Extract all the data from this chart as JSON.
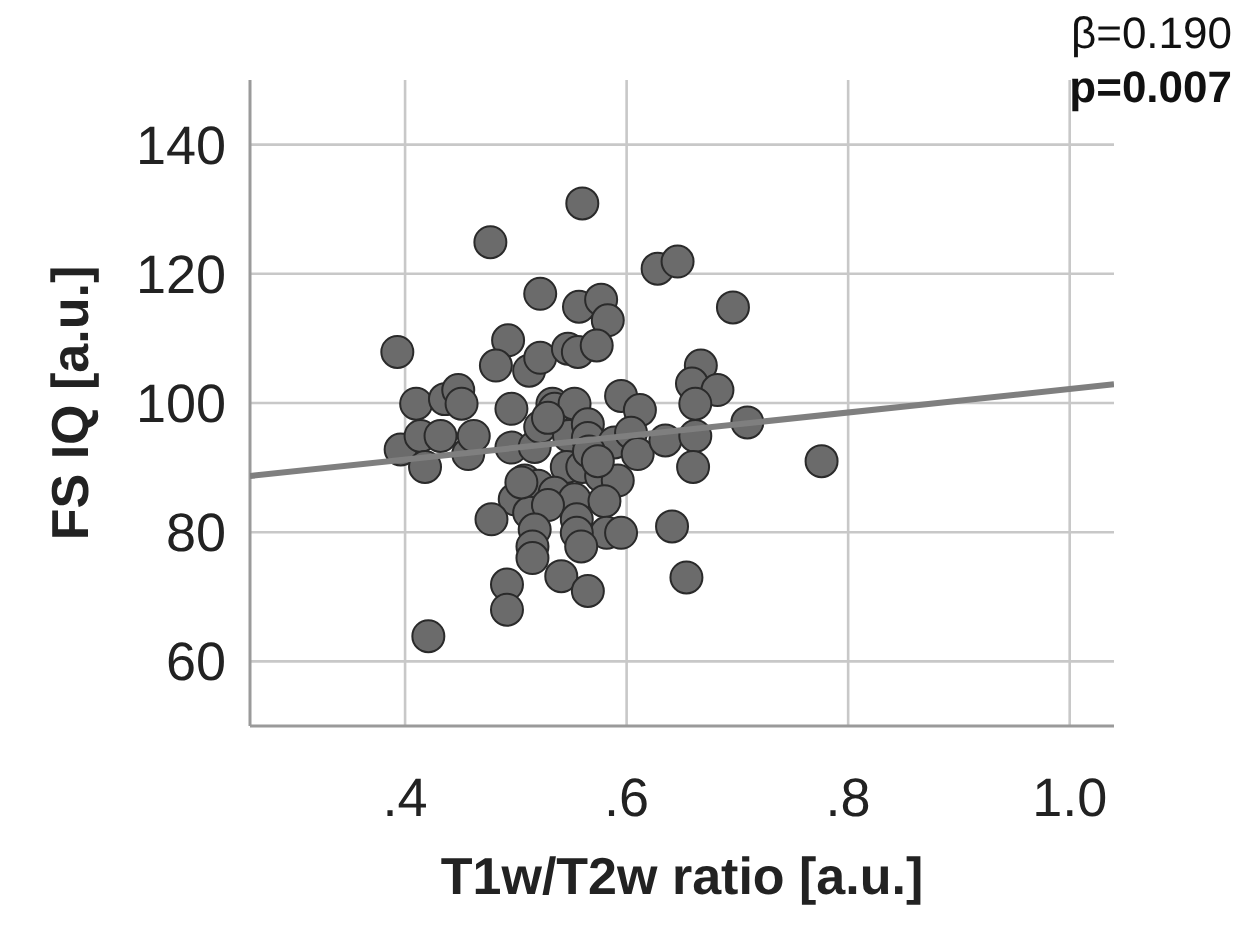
{
  "chart_data": {
    "type": "scatter",
    "xlabel": "T1w/T2w ratio [a.u.]",
    "ylabel": "FS IQ [a.u.]",
    "annotations": [
      "β=0.190",
      "p=0.007"
    ],
    "xlim": [
      0.26,
      1.04
    ],
    "ylim": [
      50,
      150
    ],
    "xticks": [
      {
        "value": 0.4,
        "label": ".4"
      },
      {
        "value": 0.6,
        "label": ".6"
      },
      {
        "value": 0.8,
        "label": ".8"
      },
      {
        "value": 1.0,
        "label": "1.0"
      }
    ],
    "yticks": [
      60,
      80,
      100,
      120,
      140
    ],
    "grid": true,
    "series": [
      {
        "marker": "circle",
        "color": "#6b6b6b",
        "x": [
          0.56,
          0.477,
          0.628,
          0.646,
          0.522,
          0.557,
          0.577,
          0.583,
          0.696,
          0.393,
          0.493,
          0.482,
          0.512,
          0.522,
          0.547,
          0.556,
          0.573,
          0.667,
          0.659,
          0.682,
          0.662,
          0.41,
          0.436,
          0.448,
          0.451,
          0.496,
          0.533,
          0.535,
          0.553,
          0.595,
          0.612,
          0.396,
          0.414,
          0.432,
          0.418,
          0.457,
          0.462,
          0.496,
          0.517,
          0.522,
          0.548,
          0.565,
          0.565,
          0.589,
          0.604,
          0.61,
          0.635,
          0.662,
          0.709,
          0.66,
          0.776,
          0.546,
          0.56,
          0.577,
          0.592,
          0.508,
          0.52,
          0.535,
          0.499,
          0.553,
          0.58,
          0.512,
          0.529,
          0.478,
          0.555,
          0.582,
          0.595,
          0.555,
          0.559,
          0.517,
          0.515,
          0.515,
          0.641,
          0.541,
          0.492,
          0.565,
          0.492,
          0.654,
          0.421,
          0.505,
          0.566,
          0.574,
          0.529
        ],
        "values": [
          130.9,
          124.9,
          120.8,
          121.9,
          116.9,
          114.9,
          116,
          112.8,
          114.8,
          107.9,
          109.7,
          105.8,
          105,
          107,
          108.4,
          107.9,
          108.9,
          105.8,
          103,
          102,
          99.9,
          99.9,
          100.6,
          102,
          99.9,
          99.1,
          99.9,
          99.1,
          99.9,
          101.1,
          98.9,
          92.8,
          94.9,
          94.9,
          90.1,
          92.1,
          94.9,
          93.1,
          93.2,
          96.3,
          94.9,
          96.7,
          94.6,
          93.9,
          95.4,
          92.1,
          94.2,
          94.9,
          97,
          90.1,
          91,
          90.1,
          90.1,
          88.7,
          88,
          88,
          87.2,
          86.1,
          85.1,
          85.1,
          84.8,
          83,
          84.2,
          82,
          82,
          79.9,
          79.9,
          79.9,
          77.8,
          80.4,
          77.8,
          76,
          80.9,
          73.2,
          71.9,
          70.9,
          68,
          73,
          63.9,
          87.7,
          92.5,
          91,
          97.7
        ]
      },
      {
        "type": "line",
        "color": "#7f7f7f",
        "x": [
          0.26,
          1.04
        ],
        "values": [
          88.7,
          102.9
        ]
      }
    ]
  }
}
